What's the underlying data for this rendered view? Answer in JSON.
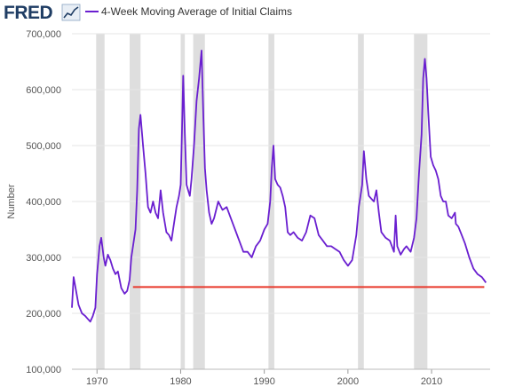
{
  "header": {
    "logo_text": "FRED",
    "logo_icon": "line-chart-icon"
  },
  "chart_data": {
    "type": "line",
    "title": "",
    "xlabel": "",
    "ylabel": "Number",
    "xlim": [
      1967,
      2017
    ],
    "ylim": [
      100000,
      700000
    ],
    "grid": "horizontal",
    "legend_position": "top-left",
    "x_ticks": [
      {
        "value": 1970,
        "label": "1970"
      },
      {
        "value": 1980,
        "label": "1980"
      },
      {
        "value": 1990,
        "label": "1990"
      },
      {
        "value": 2000,
        "label": "2000"
      },
      {
        "value": 2010,
        "label": "2010"
      }
    ],
    "y_ticks": [
      {
        "value": 100000,
        "label": "100,000"
      },
      {
        "value": 200000,
        "label": "200,000"
      },
      {
        "value": 300000,
        "label": "300,000"
      },
      {
        "value": 400000,
        "label": "400,000"
      },
      {
        "value": 500000,
        "label": "500,000"
      },
      {
        "value": 600000,
        "label": "600,000"
      },
      {
        "value": 700000,
        "label": "700,000"
      }
    ],
    "recessions": [
      [
        1969.9,
        1970.9
      ],
      [
        1973.9,
        1975.2
      ],
      [
        1980.0,
        1980.5
      ],
      [
        1981.5,
        1982.9
      ],
      [
        1990.5,
        1991.2
      ],
      [
        2001.2,
        2001.9
      ],
      [
        2007.9,
        2009.5
      ]
    ],
    "series": [
      {
        "name": "4-Week Moving Average of Initial Claims",
        "color": "#6a1fd0",
        "x": [
          1967.0,
          1967.2,
          1967.5,
          1967.8,
          1968.2,
          1968.6,
          1968.9,
          1969.2,
          1969.5,
          1969.8,
          1970.0,
          1970.3,
          1970.5,
          1970.8,
          1971.0,
          1971.3,
          1971.6,
          1971.9,
          1972.2,
          1972.5,
          1972.9,
          1973.3,
          1973.6,
          1973.9,
          1974.1,
          1974.3,
          1974.6,
          1974.8,
          1975.0,
          1975.2,
          1975.5,
          1975.8,
          1976.1,
          1976.4,
          1976.7,
          1977.0,
          1977.3,
          1977.6,
          1977.9,
          1978.3,
          1978.6,
          1978.9,
          1979.2,
          1979.5,
          1979.8,
          1980.0,
          1980.2,
          1980.3,
          1980.5,
          1980.7,
          1980.9,
          1981.1,
          1981.3,
          1981.6,
          1981.9,
          1982.2,
          1982.5,
          1982.7,
          1982.9,
          1983.1,
          1983.4,
          1983.7,
          1984.0,
          1984.5,
          1985.0,
          1985.5,
          1986.0,
          1986.5,
          1987.0,
          1987.5,
          1988.0,
          1988.5,
          1989.0,
          1989.5,
          1990.0,
          1990.4,
          1990.7,
          1990.9,
          1991.1,
          1991.3,
          1991.6,
          1991.9,
          1992.2,
          1992.5,
          1992.8,
          1993.1,
          1993.5,
          1994.0,
          1994.5,
          1995.0,
          1995.5,
          1996.0,
          1996.5,
          1997.0,
          1997.5,
          1998.0,
          1998.5,
          1999.0,
          1999.5,
          2000.0,
          2000.5,
          2001.0,
          2001.3,
          2001.7,
          2001.9,
          2002.2,
          2002.5,
          2002.8,
          2003.1,
          2003.4,
          2003.7,
          2004.0,
          2004.5,
          2005.0,
          2005.5,
          2005.7,
          2005.9,
          2006.3,
          2006.7,
          2007.0,
          2007.5,
          2007.9,
          2008.2,
          2008.5,
          2008.8,
          2009.0,
          2009.2,
          2009.4,
          2009.6,
          2009.9,
          2010.2,
          2010.5,
          2010.8,
          2011.1,
          2011.4,
          2011.7,
          2012.0,
          2012.4,
          2012.8,
          2012.9,
          2013.2,
          2013.6,
          2014.0,
          2014.5,
          2015.0,
          2015.5,
          2016.0,
          2016.5
        ],
        "values": [
          210000,
          265000,
          240000,
          215000,
          200000,
          195000,
          190000,
          185000,
          195000,
          210000,
          270000,
          320000,
          335000,
          300000,
          285000,
          305000,
          295000,
          280000,
          270000,
          275000,
          245000,
          235000,
          240000,
          260000,
          300000,
          320000,
          350000,
          420000,
          530000,
          555000,
          500000,
          450000,
          390000,
          380000,
          400000,
          380000,
          370000,
          420000,
          380000,
          345000,
          340000,
          330000,
          360000,
          390000,
          410000,
          430000,
          550000,
          625000,
          520000,
          430000,
          420000,
          410000,
          440000,
          500000,
          580000,
          620000,
          670000,
          560000,
          460000,
          420000,
          380000,
          360000,
          370000,
          400000,
          385000,
          390000,
          370000,
          350000,
          330000,
          310000,
          310000,
          300000,
          320000,
          330000,
          350000,
          360000,
          400000,
          460000,
          500000,
          440000,
          430000,
          425000,
          410000,
          390000,
          345000,
          340000,
          345000,
          335000,
          330000,
          345000,
          375000,
          370000,
          340000,
          330000,
          320000,
          320000,
          315000,
          310000,
          295000,
          285000,
          295000,
          340000,
          390000,
          430000,
          490000,
          440000,
          410000,
          405000,
          400000,
          420000,
          380000,
          345000,
          335000,
          330000,
          310000,
          375000,
          320000,
          305000,
          315000,
          320000,
          310000,
          335000,
          370000,
          450000,
          520000,
          620000,
          655000,
          620000,
          560000,
          480000,
          465000,
          455000,
          440000,
          410000,
          400000,
          400000,
          375000,
          370000,
          380000,
          360000,
          355000,
          340000,
          325000,
          300000,
          280000,
          270000,
          265000,
          255000
        ]
      }
    ],
    "reference_line": {
      "y": 247000,
      "x_start": 1974.3,
      "x_end": 2016.3,
      "color": "#e8382b"
    },
    "colors": {
      "line": "#6a1fd0",
      "recession": "#dedede",
      "grid": "#e6e6e6",
      "reference": "#e8382b",
      "logo": "#1f3d64"
    }
  }
}
